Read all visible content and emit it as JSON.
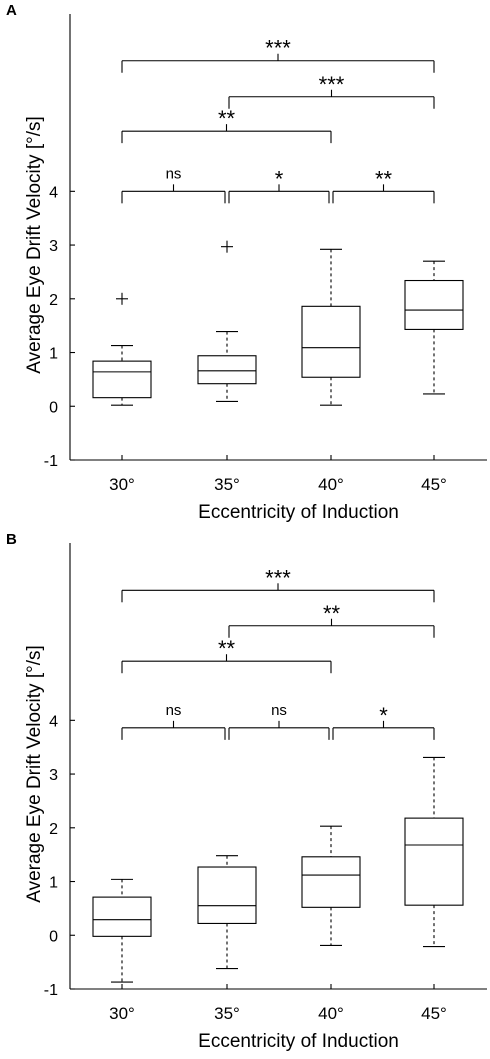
{
  "chart_data": [
    {
      "panel": "A",
      "type": "box",
      "xlabel": "Eccentricity of Induction",
      "ylabel": "Average Eye Drift Velocity [°/s]",
      "categories": [
        "30°",
        "35°",
        "40°",
        "45°"
      ],
      "ylim": [
        -1,
        7.3
      ],
      "yticks": [
        -1,
        0,
        1,
        2,
        3,
        4
      ],
      "boxes": [
        {
          "whisker_low": 0.02,
          "q1": 0.16,
          "median": 0.64,
          "q3": 0.84,
          "whisker_high": 1.13,
          "outliers": [
            2.0
          ]
        },
        {
          "whisker_low": 0.09,
          "q1": 0.42,
          "median": 0.66,
          "q3": 0.94,
          "whisker_high": 1.39,
          "outliers": [
            2.97
          ]
        },
        {
          "whisker_low": 0.02,
          "q1": 0.54,
          "median": 1.09,
          "q3": 1.86,
          "whisker_high": 2.92,
          "outliers": []
        },
        {
          "whisker_low": 0.23,
          "q1": 1.43,
          "median": 1.79,
          "q3": 2.34,
          "whisker_high": 2.7,
          "outliers": []
        }
      ],
      "comparisons": [
        {
          "from": 0,
          "to": 1,
          "y": 4.0,
          "label": "ns"
        },
        {
          "from": 1,
          "to": 2,
          "y": 4.0,
          "label": "*"
        },
        {
          "from": 2,
          "to": 3,
          "y": 4.0,
          "label": "**"
        },
        {
          "from": 0,
          "to": 2,
          "y": 5.12,
          "label": "**"
        },
        {
          "from": 1,
          "to": 3,
          "y": 5.76,
          "label": "***"
        },
        {
          "from": 0,
          "to": 3,
          "y": 6.43,
          "label": "***"
        }
      ]
    },
    {
      "panel": "B",
      "type": "box",
      "xlabel": "Eccentricity of Induction",
      "ylabel": "Average Eye Drift Velocity [°/s]",
      "categories": [
        "30°",
        "35°",
        "40°",
        "45°"
      ],
      "ylim": [
        -1,
        7.3
      ],
      "yticks": [
        -1,
        0,
        1,
        2,
        3,
        4
      ],
      "boxes": [
        {
          "whisker_low": -0.87,
          "q1": -0.02,
          "median": 0.29,
          "q3": 0.71,
          "whisker_high": 1.04,
          "outliers": []
        },
        {
          "whisker_low": -0.62,
          "q1": 0.22,
          "median": 0.55,
          "q3": 1.27,
          "whisker_high": 1.48,
          "outliers": []
        },
        {
          "whisker_low": -0.19,
          "q1": 0.52,
          "median": 1.12,
          "q3": 1.46,
          "whisker_high": 2.03,
          "outliers": []
        },
        {
          "whisker_low": -0.21,
          "q1": 0.56,
          "median": 1.68,
          "q3": 2.18,
          "whisker_high": 3.31,
          "outliers": []
        }
      ],
      "comparisons": [
        {
          "from": 0,
          "to": 1,
          "y": 3.86,
          "label": "ns"
        },
        {
          "from": 1,
          "to": 2,
          "y": 3.86,
          "label": "ns"
        },
        {
          "from": 2,
          "to": 3,
          "y": 3.86,
          "label": "*"
        },
        {
          "from": 0,
          "to": 2,
          "y": 5.1,
          "label": "**"
        },
        {
          "from": 1,
          "to": 3,
          "y": 5.76,
          "label": "**"
        },
        {
          "from": 0,
          "to": 3,
          "y": 6.42,
          "label": "***"
        }
      ]
    }
  ]
}
